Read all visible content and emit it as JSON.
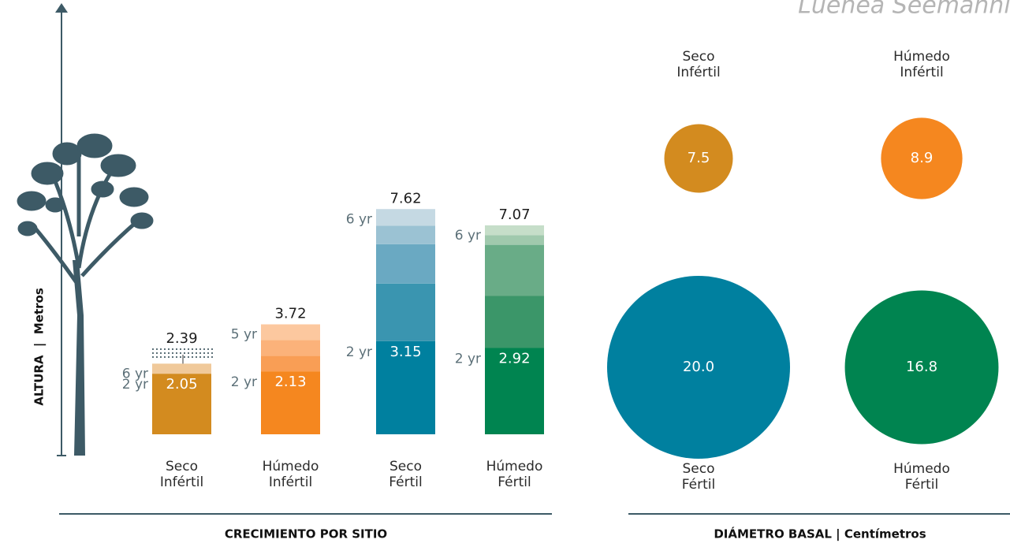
{
  "header_text": "Luehea Seemannii",
  "chart_data": [
    {
      "type": "stacked-bar",
      "title": "CRECIMIENTO POR SITIO",
      "y_label": "ALTURA  |  Metros",
      "ylim": [
        0,
        8
      ],
      "categories": [
        [
          "Seco",
          "Infértil"
        ],
        [
          "Húmedo",
          "Infértil"
        ],
        [
          "Seco",
          "Fértil"
        ],
        [
          "Húmedo",
          "Fértil"
        ]
      ],
      "bars": [
        {
          "segments": [
            2.05,
            0.34
          ],
          "colors": [
            "#d38b1f",
            "#f0c99a"
          ],
          "base_label": "2 yr",
          "top_label": "6 yr",
          "total": 2.39
        },
        {
          "segments": [
            2.13,
            0.53,
            0.53,
            0.53
          ],
          "colors": [
            "#f5871f",
            "#f99e55",
            "#fbb27a",
            "#fcc89f"
          ],
          "base_label": "2 yr",
          "top_label": "5 yr",
          "total": 3.72
        },
        {
          "segments": [
            3.15,
            1.95,
            1.33,
            0.63,
            0.56
          ],
          "colors": [
            "#00809f",
            "#3a95b0",
            "#6aa9c2",
            "#9bc2d3",
            "#c5d9e3"
          ],
          "base_label": "2 yr",
          "top_label": "6 yr",
          "total": 7.62
        },
        {
          "segments": [
            2.92,
            1.76,
            1.73,
            0.33,
            0.33
          ],
          "colors": [
            "#008450",
            "#3b9669",
            "#69ac87",
            "#a0c9ad",
            "#c6dec9"
          ],
          "base_label": "2 yr",
          "top_label": "6 yr",
          "total": 7.07
        }
      ]
    },
    {
      "type": "bubble",
      "title": "DIÁMETRO BASAL | Centímetros",
      "categories": [
        [
          "Seco",
          "Infértil"
        ],
        [
          "Húmedo",
          "Infértil"
        ],
        [
          "Seco",
          "Fértil"
        ],
        [
          "Húmedo",
          "Fértil"
        ]
      ],
      "values": [
        7.5,
        8.9,
        20.0,
        16.8
      ],
      "value_labels": [
        "7.5",
        "8.9",
        "20.0",
        "16.8"
      ],
      "colors": [
        "#d38b1f",
        "#f5871f",
        "#00809f",
        "#008450"
      ]
    }
  ]
}
